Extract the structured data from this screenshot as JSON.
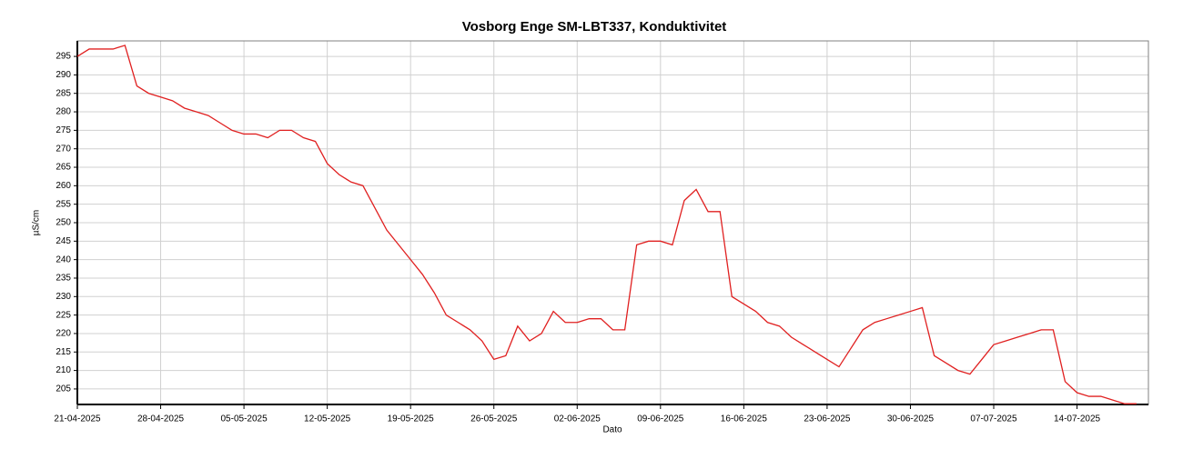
{
  "chart_data": {
    "type": "line",
    "title": "Vosborg Enge SM-LBT337, Konduktivitet",
    "x_label": "Dato",
    "y_label": "µS/cm",
    "x": [
      "2025-04-21",
      "2025-04-22",
      "2025-04-23",
      "2025-04-24",
      "2025-04-25",
      "2025-04-26",
      "2025-04-27",
      "2025-04-28",
      "2025-04-29",
      "2025-04-30",
      "2025-05-01",
      "2025-05-02",
      "2025-05-03",
      "2025-05-04",
      "2025-05-05",
      "2025-05-06",
      "2025-05-07",
      "2025-05-08",
      "2025-05-09",
      "2025-05-10",
      "2025-05-11",
      "2025-05-12",
      "2025-05-13",
      "2025-05-14",
      "2025-05-15",
      "2025-05-16",
      "2025-05-17",
      "2025-05-18",
      "2025-05-19",
      "2025-05-20",
      "2025-05-21",
      "2025-05-22",
      "2025-05-23",
      "2025-05-24",
      "2025-05-25",
      "2025-05-26",
      "2025-05-27",
      "2025-05-28",
      "2025-05-29",
      "2025-05-30",
      "2025-05-31",
      "2025-06-01",
      "2025-06-02",
      "2025-06-03",
      "2025-06-04",
      "2025-06-05",
      "2025-06-06",
      "2025-06-07",
      "2025-06-08",
      "2025-06-09",
      "2025-06-10",
      "2025-06-11",
      "2025-06-12",
      "2025-06-13",
      "2025-06-14",
      "2025-06-15",
      "2025-06-16",
      "2025-06-17",
      "2025-06-18",
      "2025-06-19",
      "2025-06-20",
      "2025-06-21",
      "2025-06-22",
      "2025-06-23",
      "2025-06-24",
      "2025-06-25",
      "2025-06-26",
      "2025-06-27",
      "2025-06-28",
      "2025-06-29",
      "2025-06-30",
      "2025-07-01",
      "2025-07-02",
      "2025-07-03",
      "2025-07-04",
      "2025-07-05",
      "2025-07-06",
      "2025-07-07",
      "2025-07-08",
      "2025-07-09",
      "2025-07-10",
      "2025-07-11",
      "2025-07-12",
      "2025-07-13",
      "2025-07-14",
      "2025-07-15",
      "2025-07-16",
      "2025-07-17",
      "2025-07-18",
      "2025-07-19"
    ],
    "series": [
      {
        "name": "Konduktivitet",
        "color": "#e02020",
        "values": [
          295,
          297,
          297,
          297,
          298,
          287,
          285,
          284,
          283,
          281,
          280,
          279,
          277,
          275,
          274,
          274,
          273,
          275,
          275,
          273,
          272,
          266,
          263,
          261,
          260,
          254,
          248,
          244,
          240,
          236,
          231,
          225,
          223,
          221,
          218,
          213,
          214,
          222,
          218,
          220,
          226,
          223,
          223,
          224,
          224,
          221,
          221,
          244,
          245,
          245,
          244,
          256,
          259,
          253,
          253,
          230,
          228,
          226,
          223,
          222,
          219,
          217,
          215,
          213,
          211,
          216,
          221,
          223,
          224,
          225,
          226,
          227,
          214,
          212,
          210,
          209,
          213,
          217,
          218,
          219,
          220,
          221,
          221,
          207,
          204,
          203,
          203,
          202,
          201,
          201
        ]
      }
    ],
    "xlim": [
      "2025-04-21",
      "2025-07-20"
    ],
    "xticks": [
      {
        "value": "2025-04-21",
        "label": "21-04-2025"
      },
      {
        "value": "2025-04-28",
        "label": "28-04-2025"
      },
      {
        "value": "2025-05-05",
        "label": "05-05-2025"
      },
      {
        "value": "2025-05-12",
        "label": "12-05-2025"
      },
      {
        "value": "2025-05-19",
        "label": "19-05-2025"
      },
      {
        "value": "2025-05-26",
        "label": "26-05-2025"
      },
      {
        "value": "2025-06-02",
        "label": "02-06-2025"
      },
      {
        "value": "2025-06-09",
        "label": "09-06-2025"
      },
      {
        "value": "2025-06-16",
        "label": "16-06-2025"
      },
      {
        "value": "2025-06-23",
        "label": "23-06-2025"
      },
      {
        "value": "2025-06-30",
        "label": "30-06-2025"
      },
      {
        "value": "2025-07-07",
        "label": "07-07-2025"
      },
      {
        "value": "2025-07-14",
        "label": "14-07-2025"
      }
    ],
    "ylim": [
      200.8,
      299.2
    ],
    "yticks": [
      205,
      210,
      215,
      220,
      225,
      230,
      235,
      240,
      245,
      250,
      255,
      260,
      265,
      270,
      275,
      280,
      285,
      290,
      295
    ],
    "grid": true
  }
}
